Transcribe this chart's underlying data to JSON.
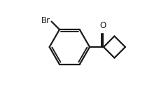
{
  "background_color": "#ffffff",
  "bond_color": "#1a1a1a",
  "text_color": "#1a1a1a",
  "br_label": "Br",
  "o_label": "O",
  "font_size_atom": 8.5,
  "line_width": 1.6,
  "figsize": [
    2.4,
    1.34
  ],
  "dpi": 100,
  "xlim": [
    0.0,
    1.0
  ],
  "ylim": [
    0.05,
    0.95
  ]
}
